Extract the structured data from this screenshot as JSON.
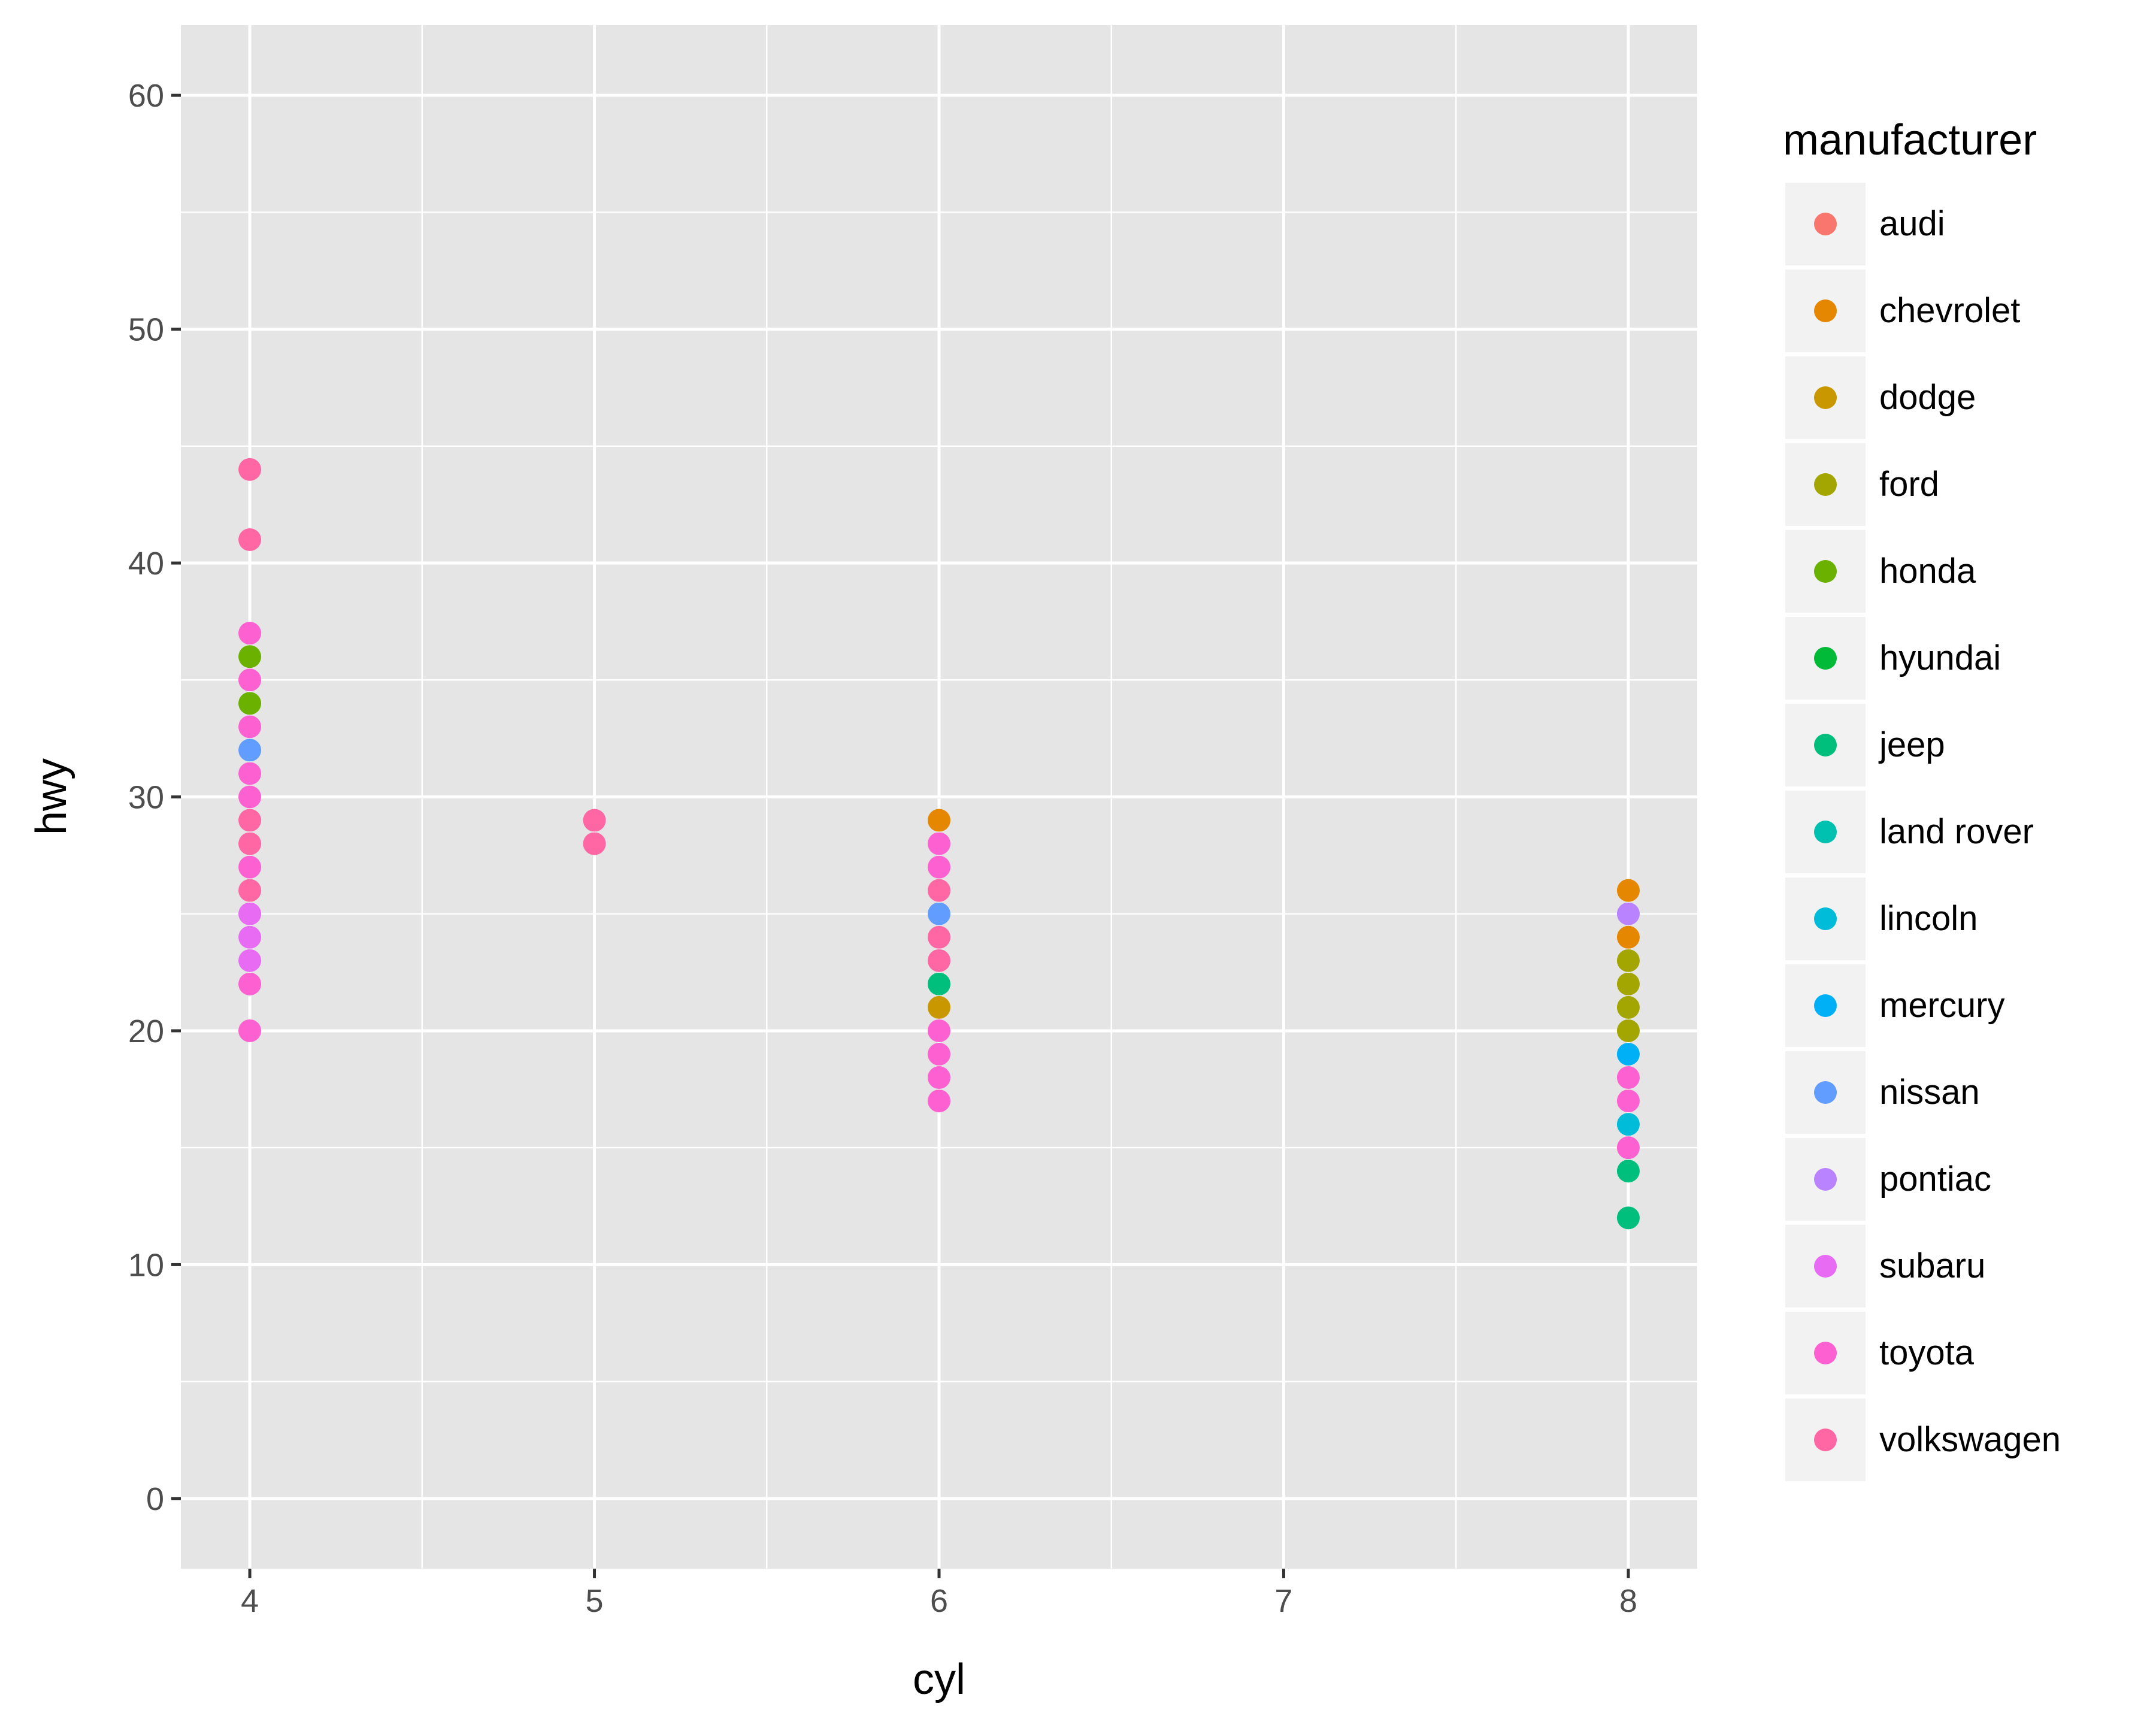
{
  "chart_data": {
    "type": "scatter",
    "title": "",
    "xlabel": "cyl",
    "ylabel": "hwy",
    "xlim": [
      3.8,
      8.2
    ],
    "ylim": [
      -3,
      63
    ],
    "xticks": [
      4,
      5,
      6,
      7,
      8
    ],
    "yticks": [
      0,
      10,
      20,
      30,
      40,
      50,
      60
    ],
    "grid": true,
    "legend": {
      "title": "manufacturer",
      "placement": "right",
      "entries": [
        {
          "name": "audi",
          "color": "#F8766D"
        },
        {
          "name": "chevrolet",
          "color": "#E58700"
        },
        {
          "name": "dodge",
          "color": "#C99800"
        },
        {
          "name": "ford",
          "color": "#A3A500"
        },
        {
          "name": "honda",
          "color": "#6BB100"
        },
        {
          "name": "hyundai",
          "color": "#00BA38"
        },
        {
          "name": "jeep",
          "color": "#00BF7D"
        },
        {
          "name": "land rover",
          "color": "#00C0AF"
        },
        {
          "name": "lincoln",
          "color": "#00BCD8"
        },
        {
          "name": "mercury",
          "color": "#00B0F6"
        },
        {
          "name": "nissan",
          "color": "#619CFF"
        },
        {
          "name": "pontiac",
          "color": "#B983FF"
        },
        {
          "name": "subaru",
          "color": "#E76BF3"
        },
        {
          "name": "toyota",
          "color": "#FD61D1"
        },
        {
          "name": "volkswagen",
          "color": "#FF67A4"
        }
      ]
    },
    "points": [
      {
        "x": 4,
        "y": 44,
        "m": "volkswagen"
      },
      {
        "x": 4,
        "y": 41,
        "m": "volkswagen"
      },
      {
        "x": 4,
        "y": 37,
        "m": "toyota"
      },
      {
        "x": 4,
        "y": 36,
        "m": "honda"
      },
      {
        "x": 4,
        "y": 35,
        "m": "toyota"
      },
      {
        "x": 4,
        "y": 34,
        "m": "honda"
      },
      {
        "x": 4,
        "y": 33,
        "m": "toyota"
      },
      {
        "x": 4,
        "y": 32,
        "m": "nissan"
      },
      {
        "x": 4,
        "y": 31,
        "m": "toyota"
      },
      {
        "x": 4,
        "y": 30,
        "m": "toyota"
      },
      {
        "x": 4,
        "y": 29,
        "m": "volkswagen"
      },
      {
        "x": 4,
        "y": 28,
        "m": "volkswagen"
      },
      {
        "x": 4,
        "y": 27,
        "m": "toyota"
      },
      {
        "x": 4,
        "y": 26,
        "m": "volkswagen"
      },
      {
        "x": 4,
        "y": 25,
        "m": "subaru"
      },
      {
        "x": 4,
        "y": 24,
        "m": "subaru"
      },
      {
        "x": 4,
        "y": 23,
        "m": "subaru"
      },
      {
        "x": 4,
        "y": 22,
        "m": "toyota"
      },
      {
        "x": 4,
        "y": 20,
        "m": "toyota"
      },
      {
        "x": 5,
        "y": 29,
        "m": "volkswagen"
      },
      {
        "x": 5,
        "y": 28,
        "m": "volkswagen"
      },
      {
        "x": 6,
        "y": 29,
        "m": "chevrolet"
      },
      {
        "x": 6,
        "y": 28,
        "m": "toyota"
      },
      {
        "x": 6,
        "y": 27,
        "m": "toyota"
      },
      {
        "x": 6,
        "y": 26,
        "m": "volkswagen"
      },
      {
        "x": 6,
        "y": 25,
        "m": "nissan"
      },
      {
        "x": 6,
        "y": 24,
        "m": "volkswagen"
      },
      {
        "x": 6,
        "y": 23,
        "m": "volkswagen"
      },
      {
        "x": 6,
        "y": 22,
        "m": "jeep"
      },
      {
        "x": 6,
        "y": 21,
        "m": "dodge"
      },
      {
        "x": 6,
        "y": 20,
        "m": "toyota"
      },
      {
        "x": 6,
        "y": 19,
        "m": "toyota"
      },
      {
        "x": 6,
        "y": 18,
        "m": "toyota"
      },
      {
        "x": 6,
        "y": 17,
        "m": "toyota"
      },
      {
        "x": 8,
        "y": 26,
        "m": "chevrolet"
      },
      {
        "x": 8,
        "y": 25,
        "m": "pontiac"
      },
      {
        "x": 8,
        "y": 24,
        "m": "chevrolet"
      },
      {
        "x": 8,
        "y": 23,
        "m": "ford"
      },
      {
        "x": 8,
        "y": 22,
        "m": "ford"
      },
      {
        "x": 8,
        "y": 21,
        "m": "ford"
      },
      {
        "x": 8,
        "y": 20,
        "m": "ford"
      },
      {
        "x": 8,
        "y": 19,
        "m": "mercury"
      },
      {
        "x": 8,
        "y": 18,
        "m": "toyota"
      },
      {
        "x": 8,
        "y": 17,
        "m": "toyota"
      },
      {
        "x": 8,
        "y": 16,
        "m": "lincoln"
      },
      {
        "x": 8,
        "y": 15,
        "m": "toyota"
      },
      {
        "x": 8,
        "y": 14,
        "m": "jeep"
      },
      {
        "x": 8,
        "y": 12,
        "m": "jeep"
      }
    ]
  }
}
